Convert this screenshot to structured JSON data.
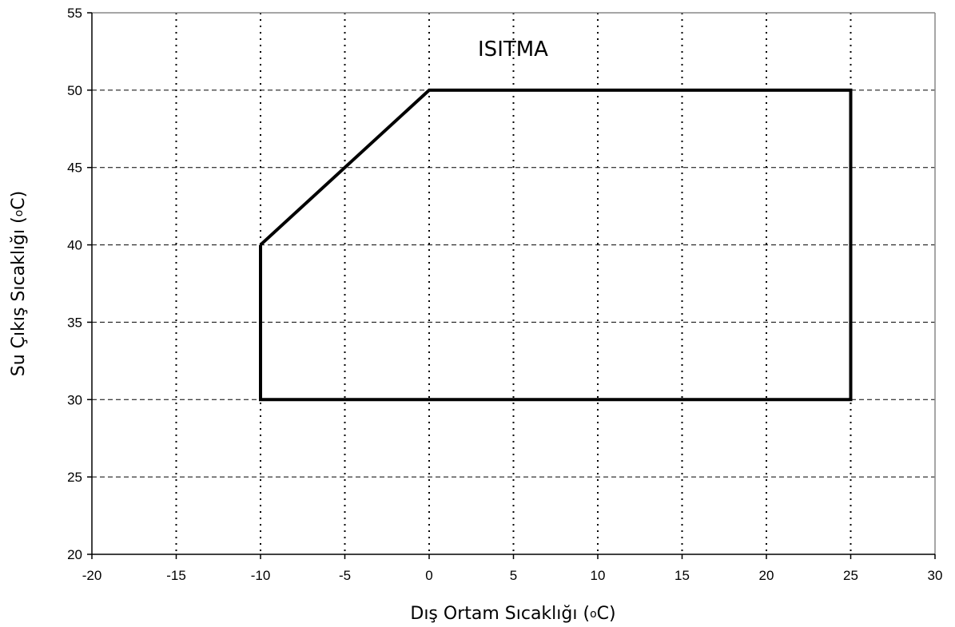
{
  "chart_data": {
    "type": "line",
    "title": "ISITMA",
    "xlabel": "Dış Ortam Sıcaklığı (",
    "ylabel": "Su Çıkış Sıcaklığı (",
    "unit_degree": "o",
    "unit_symbol": "C",
    "unit_close": ")",
    "xlim": [
      -20,
      30
    ],
    "ylim": [
      20,
      55
    ],
    "xticks": [
      -20,
      -15,
      -10,
      -5,
      0,
      5,
      10,
      15,
      20,
      25,
      30
    ],
    "yticks": [
      20,
      25,
      30,
      35,
      40,
      45,
      50,
      55
    ],
    "grid": true,
    "series": [
      {
        "color": "#000000",
        "closed": true,
        "x": [
          -10,
          0,
          25,
          25,
          -10,
          -10
        ],
        "y": [
          40,
          50,
          50,
          30,
          30,
          40
        ]
      }
    ]
  }
}
